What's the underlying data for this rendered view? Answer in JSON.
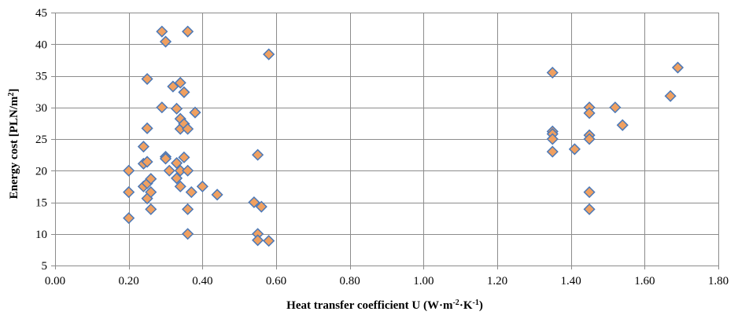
{
  "chart_data": {
    "type": "scatter",
    "xlabel": "Heat transfer coefficient U (W·m",
    "xlabel_sup1": "-2",
    "xlabel_mid": "·K",
    "xlabel_sup2": "-1",
    "xlabel_end": ")",
    "ylabel": "Energy cost [PLN/m",
    "ylabel_sup": "2",
    "ylabel_end": "]",
    "xlim": [
      0,
      1.8
    ],
    "ylim": [
      5,
      45
    ],
    "x_ticks": [
      "0.00",
      "0.20",
      "0.40",
      "0.60",
      "0.80",
      "1.00",
      "1.20",
      "1.40",
      "1.60",
      "1.80"
    ],
    "y_ticks": [
      "5",
      "10",
      "15",
      "20",
      "25",
      "30",
      "35",
      "40",
      "45"
    ],
    "grid": true,
    "legend": "none",
    "marker": {
      "shape": "diamond",
      "fill": "#f0a060",
      "stroke": "#4a78b8"
    },
    "series": [
      {
        "points": [
          [
            0.2,
            12.5
          ],
          [
            0.2,
            16.6
          ],
          [
            0.2,
            20.0
          ],
          [
            0.24,
            23.8
          ],
          [
            0.24,
            21.1
          ],
          [
            0.24,
            17.5
          ],
          [
            0.25,
            34.5
          ],
          [
            0.25,
            26.7
          ],
          [
            0.25,
            21.4
          ],
          [
            0.25,
            18.0
          ],
          [
            0.25,
            15.6
          ],
          [
            0.26,
            18.7
          ],
          [
            0.26,
            16.6
          ],
          [
            0.26,
            13.9
          ],
          [
            0.29,
            42.0
          ],
          [
            0.29,
            30.0
          ],
          [
            0.3,
            40.4
          ],
          [
            0.3,
            22.2
          ],
          [
            0.3,
            21.9
          ],
          [
            0.31,
            20.0
          ],
          [
            0.32,
            33.3
          ],
          [
            0.33,
            29.8
          ],
          [
            0.33,
            21.2
          ],
          [
            0.33,
            18.8
          ],
          [
            0.34,
            33.9
          ],
          [
            0.34,
            28.2
          ],
          [
            0.34,
            26.6
          ],
          [
            0.34,
            20.0
          ],
          [
            0.34,
            17.5
          ],
          [
            0.35,
            32.4
          ],
          [
            0.35,
            27.4
          ],
          [
            0.35,
            22.1
          ],
          [
            0.36,
            42.0
          ],
          [
            0.36,
            26.6
          ],
          [
            0.36,
            20.0
          ],
          [
            0.36,
            13.9
          ],
          [
            0.36,
            10.0
          ],
          [
            0.37,
            16.6
          ],
          [
            0.38,
            29.2
          ],
          [
            0.4,
            17.5
          ],
          [
            0.44,
            16.2
          ],
          [
            0.54,
            15.0
          ],
          [
            0.55,
            22.5
          ],
          [
            0.55,
            10.0
          ],
          [
            0.55,
            9.0
          ],
          [
            0.56,
            14.3
          ],
          [
            0.58,
            38.4
          ],
          [
            0.58,
            8.9
          ],
          [
            1.35,
            35.5
          ],
          [
            1.35,
            26.2
          ],
          [
            1.35,
            25.8
          ],
          [
            1.35,
            25.0
          ],
          [
            1.35,
            23.0
          ],
          [
            1.41,
            23.4
          ],
          [
            1.45,
            30.0
          ],
          [
            1.45,
            29.1
          ],
          [
            1.45,
            25.6
          ],
          [
            1.45,
            25.0
          ],
          [
            1.45,
            16.6
          ],
          [
            1.45,
            13.9
          ],
          [
            1.52,
            30.0
          ],
          [
            1.54,
            27.2
          ],
          [
            1.67,
            31.8
          ],
          [
            1.69,
            36.3
          ]
        ]
      }
    ]
  }
}
